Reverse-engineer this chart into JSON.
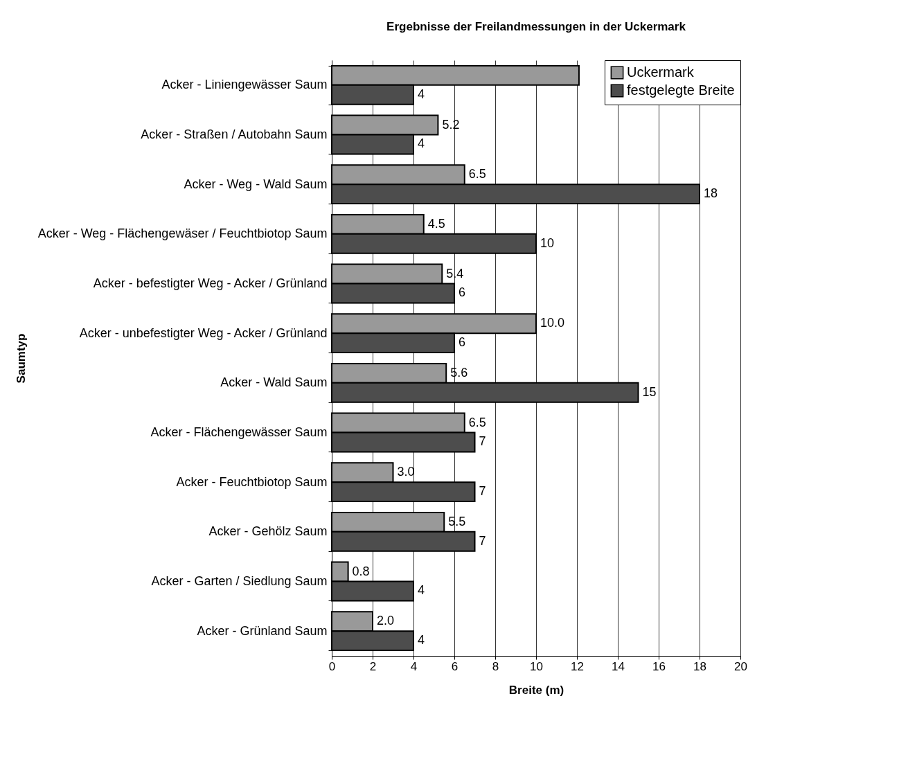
{
  "chart_data": {
    "type": "bar",
    "orientation": "horizontal",
    "title": "Ergebnisse der Freilandmessungen in der Uckermark",
    "xlabel": "Breite (m)",
    "ylabel": "Saumtyp",
    "categories": [
      "Acker - Liniengewässer Saum",
      "Acker - Straßen / Autobahn Saum",
      "Acker - Weg - Wald  Saum",
      "Acker - Weg - Flächengewäser / Feuchtbiotop  Saum",
      "Acker - befestigter Weg - Acker  / Grünland",
      "Acker - unbefestigter Weg - Acker  / Grünland",
      "Acker - Wald Saum",
      "Acker - Flächengewässer Saum",
      "Acker - Feuchtbiotop Saum",
      "Acker - Gehölz Saum",
      "Acker - Garten / Siedlung Saum",
      "Acker - Grünland Saum"
    ],
    "series": [
      {
        "name": "Uckermark",
        "color": "#999999",
        "values": [
          12.1,
          5.2,
          6.5,
          4.5,
          5.4,
          10.0,
          5.6,
          6.5,
          3.0,
          5.5,
          0.8,
          2.0
        ],
        "value_labels": [
          null,
          "5.2",
          "6.5",
          "4.5",
          "5.4",
          "10.0",
          "5.6",
          "6.5",
          "3.0",
          "5.5",
          "0.8",
          "2.0"
        ]
      },
      {
        "name": "festgelegte Breite",
        "color": "#4d4d4d",
        "values": [
          4,
          4,
          18,
          10,
          6,
          6,
          15,
          7,
          7,
          7,
          4,
          4
        ],
        "value_labels": [
          "4",
          "4",
          "18",
          "10",
          "6",
          "6",
          "15",
          "7",
          "7",
          "7",
          "4",
          "4"
        ]
      }
    ],
    "xlim": [
      0,
      20
    ],
    "xticks": [
      0,
      2,
      4,
      6,
      8,
      10,
      12,
      14,
      16,
      18,
      20
    ],
    "grid": "x",
    "legend": "top right"
  }
}
